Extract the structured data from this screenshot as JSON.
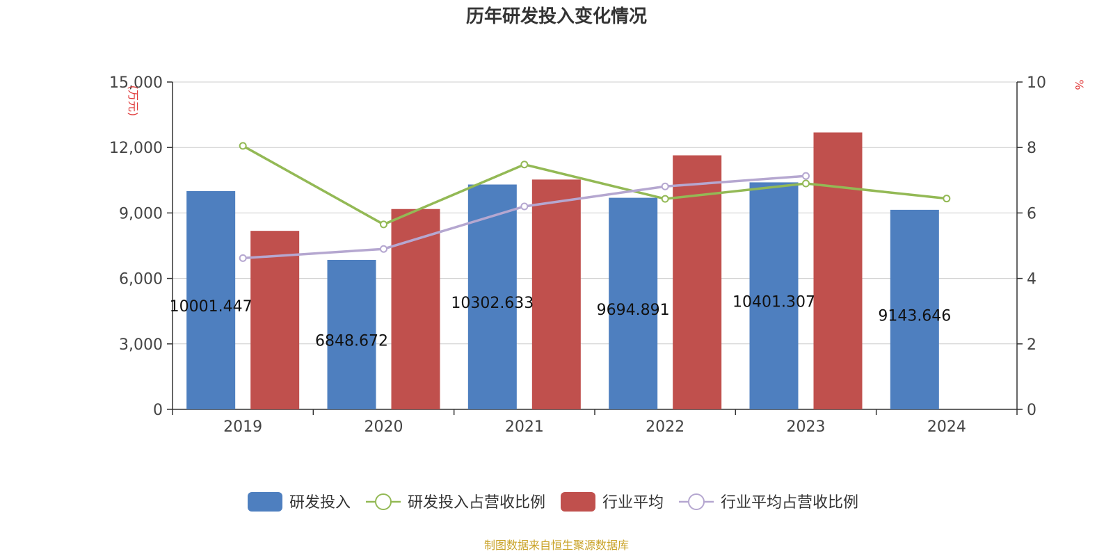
{
  "title": "历年研发投入变化情况",
  "source": "制图数据来自恒生聚源数据库",
  "chart_data": {
    "type": "bar",
    "title": "历年研发投入变化情况",
    "categories": [
      "2019",
      "2020",
      "2021",
      "2022",
      "2023",
      "2024"
    ],
    "y_left": {
      "name": "(万元)",
      "ylim": [
        0,
        15000
      ],
      "ticks": [
        "0",
        "3,000",
        "6,000",
        "9,000",
        "12,000",
        "15,000"
      ],
      "tick_values": [
        0,
        3000,
        6000,
        9000,
        12000,
        15000
      ]
    },
    "y_right": {
      "name": "%",
      "ylim": [
        0,
        10
      ],
      "ticks": [
        "0",
        "2",
        "4",
        "6",
        "8",
        "10"
      ],
      "tick_values": [
        0,
        2,
        4,
        6,
        8,
        10
      ]
    },
    "series": [
      {
        "name": "研发投入",
        "type": "bar",
        "axis": "left",
        "color": "#4e7fbf",
        "values": [
          10001.447,
          6848.672,
          10302.633,
          9694.891,
          10401.307,
          9143.646
        ],
        "labels": [
          "10001.447",
          "6848.672",
          "10302.633",
          "9694.891",
          "10401.307",
          "9143.646"
        ]
      },
      {
        "name": "研发投入占营收比例",
        "type": "line",
        "axis": "right",
        "color": "#93b955",
        "values": [
          8.05,
          5.65,
          7.48,
          6.43,
          6.9,
          6.44
        ]
      },
      {
        "name": "行业平均",
        "type": "bar",
        "axis": "left",
        "color": "#c0504d",
        "values": [
          8180,
          9180,
          10530,
          11640,
          12690,
          null
        ]
      },
      {
        "name": "行业平均占营收比例",
        "type": "line",
        "axis": "right",
        "color": "#b5a7d0",
        "values": [
          4.62,
          4.9,
          6.2,
          6.81,
          7.13,
          null
        ]
      }
    ],
    "grid": true,
    "legend_position": "bottom"
  }
}
